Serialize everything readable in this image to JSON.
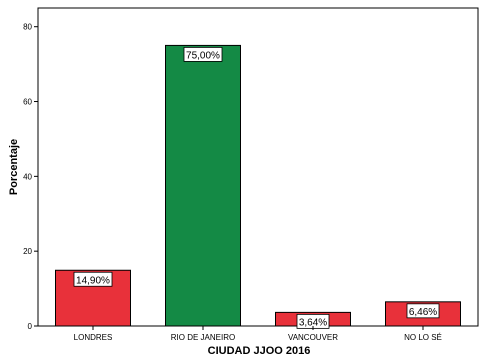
{
  "chart_data": {
    "type": "bar",
    "categories": [
      "LONDRES",
      "RIO DE JANEIRO",
      "VANCOUVER",
      "NO LO SÉ"
    ],
    "values": [
      14.9,
      75.0,
      3.64,
      6.46
    ],
    "data_labels": [
      "14,90%",
      "75,00%",
      "3,64%",
      "6,46%"
    ],
    "colors": [
      "#e8313a",
      "#148a45",
      "#e8313a",
      "#e8313a"
    ],
    "xlabel": "CIUDAD JJOO 2016",
    "ylabel": "Porcentaje",
    "yticks": [
      0,
      20,
      40,
      60,
      80
    ],
    "ylim": [
      0,
      85
    ],
    "grid": false,
    "legend": "none"
  }
}
